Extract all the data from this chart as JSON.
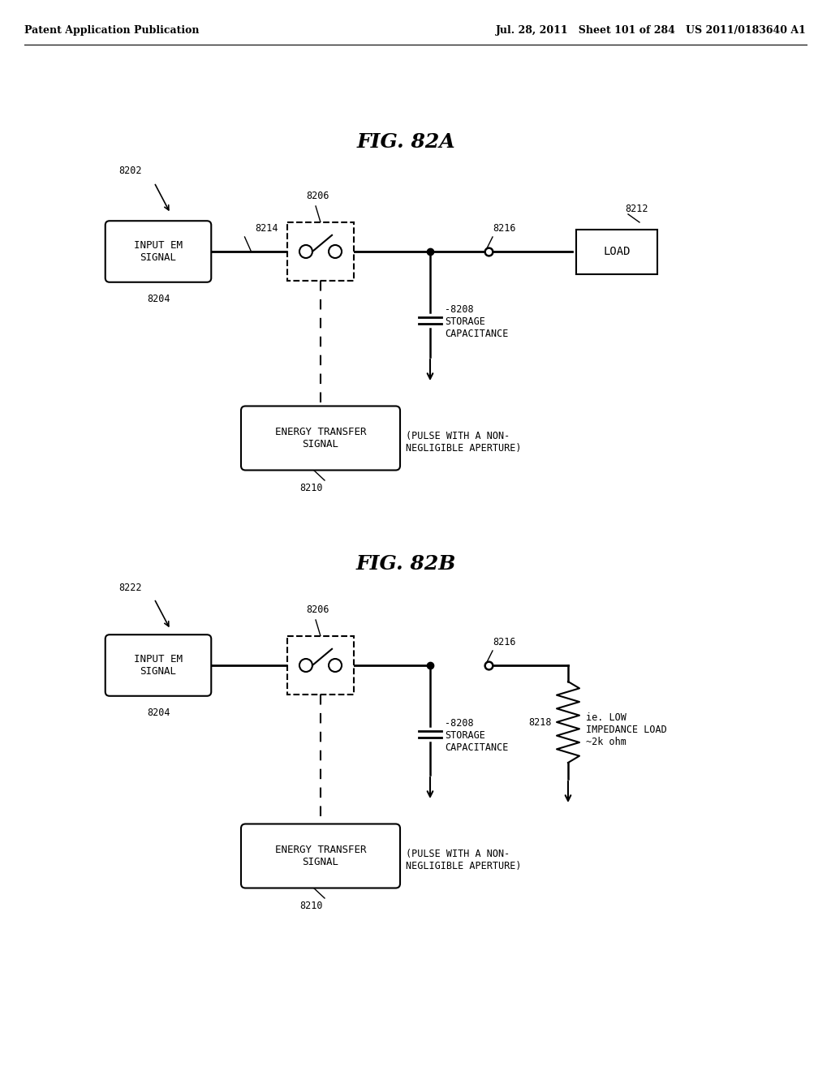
{
  "header_left": "Patent Application Publication",
  "header_right": "Jul. 28, 2011   Sheet 101 of 284   US 2011/0183640 A1",
  "fig_a_title": "FIG. 82A",
  "fig_b_title": "FIG. 82B",
  "bg_color": "#ffffff",
  "text_color": "#000000",
  "line_color": "#000000",
  "fig_a": {
    "ref_8202": "8202",
    "ref_8204": "8204",
    "ref_8206": "8206",
    "ref_8208": "8208",
    "ref_8210": "8210",
    "ref_8212": "8212",
    "ref_8214": "8214",
    "ref_8216": "8216",
    "label_input": "INPUT EM\nSIGNAL",
    "label_load": "LOAD",
    "label_storage": "-8208\nSTORAGE\nCAPACITANCE",
    "label_energy": "ENERGY TRANSFER\nSIGNAL",
    "label_pulse": "(PULSE WITH A NON-\nNEGLIGIBLE APERTURE)"
  },
  "fig_b": {
    "ref_8222": "8222",
    "ref_8204": "8204",
    "ref_8206": "8206",
    "ref_8208": "8208",
    "ref_8210": "8210",
    "ref_8216": "8216",
    "ref_8218": "8218",
    "label_input": "INPUT EM\nSIGNAL",
    "label_storage": "-8208\nSTORAGE\nCAPACITANCE",
    "label_energy": "ENERGY TRANSFER\nSIGNAL",
    "label_pulse": "(PULSE WITH A NON-\nNEGLIGIBLE APERTURE)",
    "label_load": "ie. LOW\nIMPEDANCE LOAD\n~2k ohm"
  }
}
